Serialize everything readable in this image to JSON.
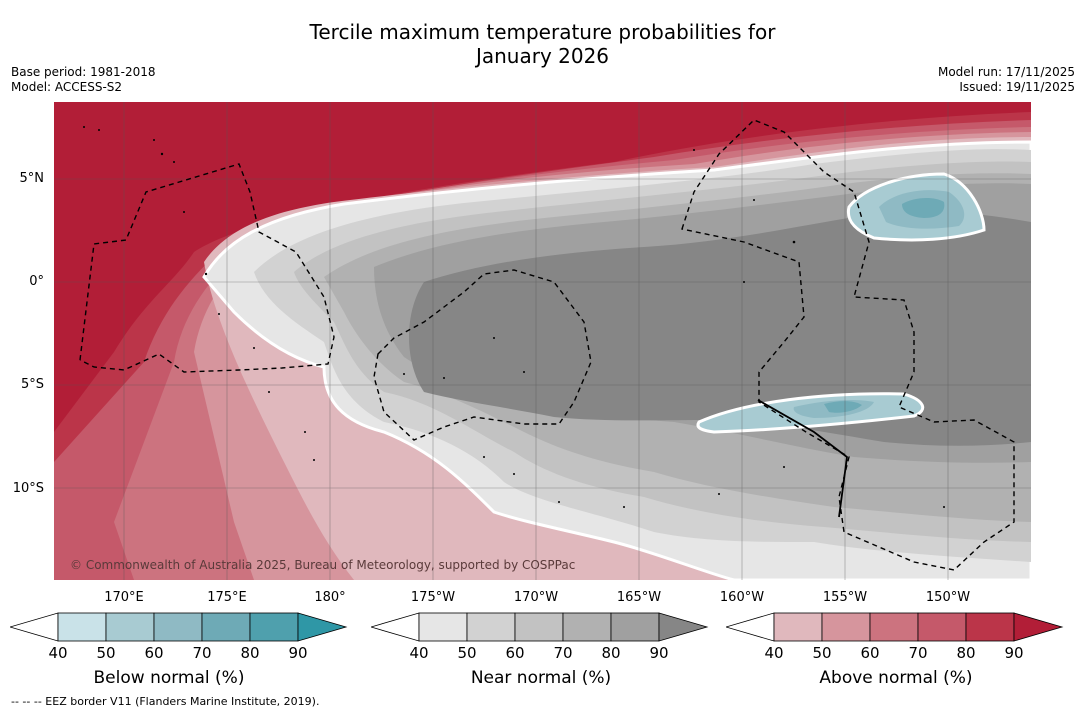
{
  "title_line1": "Tercile maximum temperature probabilities for",
  "title_line2": "January 2026",
  "base_period": "Base period: 1981-2018",
  "model": "Model: ACCESS-S2",
  "model_run": "Model run: 17/11/2025",
  "issued": "Issued: 19/11/2025",
  "copyright": "© Commonwealth of Australia 2025, Bureau of Meteorology, supported by COSPPac",
  "eez_note": "--  --  -- EEZ border V11 (Flanders Marine Institute, 2019).",
  "lat_labels": [
    "5°N",
    "0°",
    "5°S",
    "10°S"
  ],
  "lon_labels": [
    "170°E",
    "175°E",
    "180°",
    "175°W",
    "170°W",
    "165°W",
    "160°W",
    "155°W",
    "150°W"
  ],
  "legends": [
    {
      "name": "below",
      "title": "Below normal (%)",
      "ticks": [
        "40",
        "50",
        "60",
        "70",
        "80",
        "90"
      ],
      "colors": [
        "#ffffff",
        "#c9e2e8",
        "#a8cbd2",
        "#8fbac4",
        "#6eaab6",
        "#4fa0ad",
        "#2f97a6"
      ]
    },
    {
      "name": "near",
      "title": "Near normal (%)",
      "ticks": [
        "40",
        "50",
        "60",
        "70",
        "80",
        "90"
      ],
      "colors": [
        "#ffffff",
        "#e6e6e6",
        "#d2d2d2",
        "#c2c2c2",
        "#b1b1b1",
        "#a0a0a0",
        "#868686"
      ]
    },
    {
      "name": "above",
      "title": "Above normal (%)",
      "ticks": [
        "40",
        "50",
        "60",
        "70",
        "80",
        "90"
      ],
      "colors": [
        "#ffffff",
        "#e0b8bd",
        "#d6959d",
        "#cc737f",
        "#c5596a",
        "#bb3549",
        "#b21e37"
      ]
    }
  ]
}
